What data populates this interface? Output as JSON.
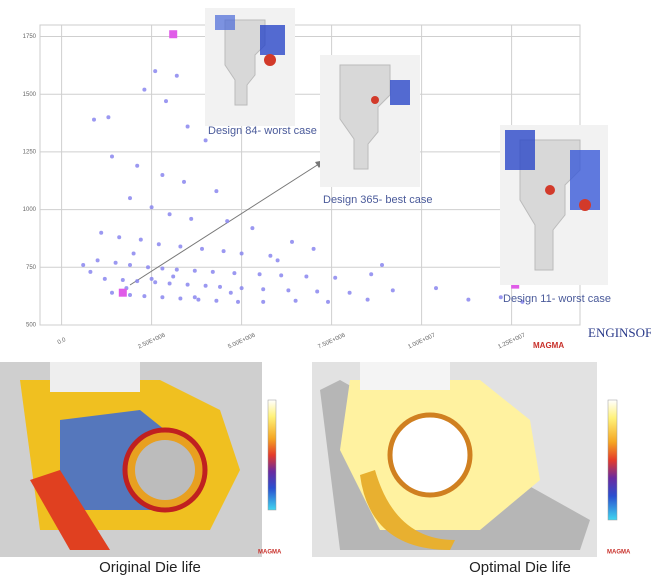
{
  "chart_data": {
    "type": "scatter",
    "ylim": [
      500,
      1800
    ],
    "yticks": [
      500,
      750,
      1000,
      1250,
      1500,
      1750
    ],
    "xlim": [
      -600000,
      14400000
    ],
    "xticks": [
      {
        "value": 0,
        "label": "0.0"
      },
      {
        "value": 2500000,
        "label": "2.50E+006"
      },
      {
        "value": 5000000,
        "label": "5.00E+006"
      },
      {
        "value": 7500000,
        "label": "7.50E+006"
      },
      {
        "value": 10000000,
        "label": "1.00E+007"
      },
      {
        "value": 12500000,
        "label": "1.25E+007"
      }
    ],
    "grid": true,
    "series": [
      {
        "color": "#8a86ee",
        "x": [
          900000,
          1300000,
          2600000,
          3200000,
          2300000,
          2900000,
          3500000,
          4000000,
          1400000,
          2100000,
          2800000,
          3400000,
          4300000,
          1900000,
          2500000,
          3000000,
          3600000,
          4600000,
          5300000,
          1100000,
          1600000,
          2200000,
          2700000,
          3300000,
          3900000,
          4500000,
          5000000,
          5800000,
          6400000,
          7000000,
          1000000,
          1500000,
          1900000,
          2400000,
          2800000,
          3200000,
          3700000,
          4200000,
          4800000,
          5500000,
          6100000,
          6800000,
          7600000,
          8600000,
          1200000,
          1700000,
          2100000,
          2600000,
          3000000,
          3500000,
          4000000,
          4400000,
          5000000,
          5600000,
          6300000,
          7100000,
          8000000,
          9200000,
          10400000,
          1400000,
          1900000,
          2300000,
          2800000,
          3300000,
          3800000,
          4300000,
          4900000,
          5600000,
          6500000,
          7400000,
          8500000,
          11300000,
          12800000,
          1800000,
          2500000,
          3100000,
          800000,
          600000,
          2000000,
          6000000,
          8900000,
          12200000,
          3700000,
          4700000
        ],
        "values": [
          1390,
          1400,
          1600,
          1580,
          1520,
          1470,
          1360,
          1300,
          1230,
          1190,
          1150,
          1120,
          1080,
          1050,
          1010,
          980,
          960,
          950,
          920,
          900,
          880,
          870,
          850,
          840,
          830,
          820,
          810,
          800,
          860,
          830,
          780,
          770,
          760,
          750,
          745,
          740,
          735,
          730,
          725,
          720,
          715,
          710,
          705,
          720,
          700,
          695,
          690,
          685,
          680,
          675,
          670,
          665,
          660,
          655,
          650,
          645,
          640,
          650,
          660,
          640,
          630,
          625,
          620,
          615,
          610,
          605,
          600,
          600,
          605,
          600,
          610,
          610,
          600,
          660,
          700,
          710,
          730,
          760,
          810,
          780,
          760,
          620,
          620,
          640
        ]
      },
      {
        "color": "#e05ce8",
        "x": [
          3100000,
          1700000,
          12600000
        ],
        "values": [
          1760,
          640,
          675
        ]
      }
    ],
    "annotations": [
      "Design 84- worst case",
      "Design 365- best case",
      "Design 11- worst case"
    ]
  },
  "logos": {
    "enginsoft": "ENGINSOFT",
    "magma": "MAGMA"
  },
  "captions": {
    "original": "Original Die life",
    "optimal": "Optimal Die life"
  }
}
